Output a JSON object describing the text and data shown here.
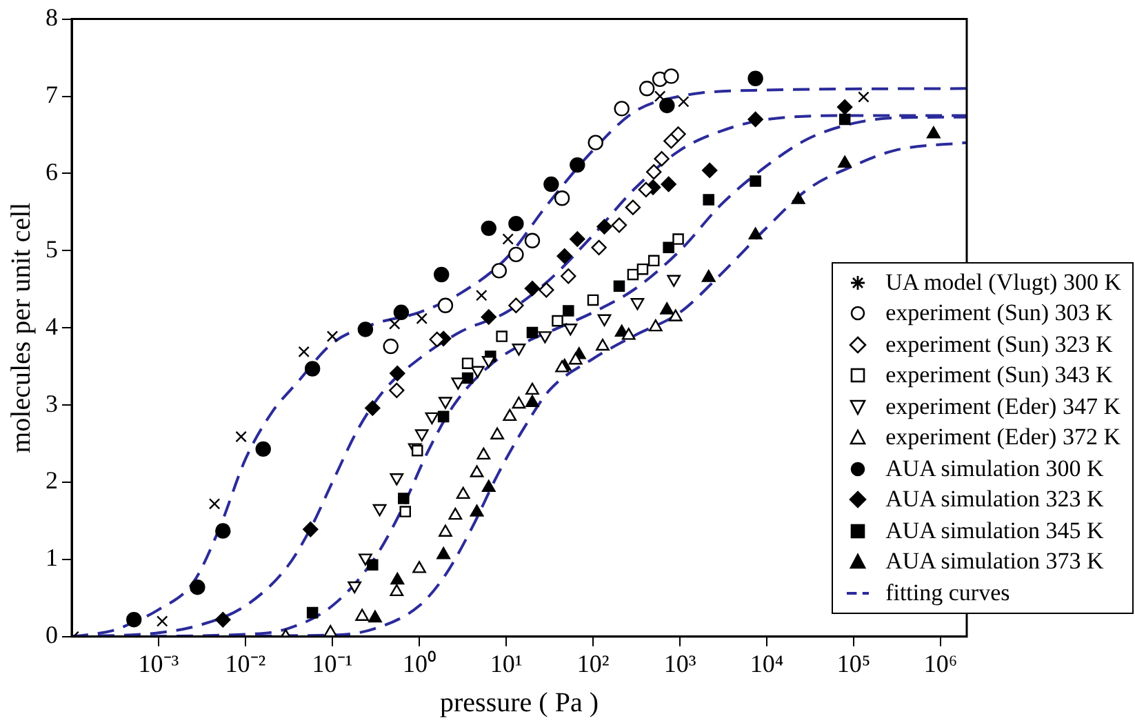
{
  "chart_data": {
    "type": "scatter",
    "xlabel": "pressure ( Pa )",
    "ylabel": "molecules per unit cell",
    "log": "x",
    "grid": false,
    "legend": "bottom right",
    "xlim": [
      0.0001,
      2000000
    ],
    "ylim": [
      0,
      8
    ],
    "xticks": [
      {
        "value": 0.001,
        "label": "10⁻³"
      },
      {
        "value": 0.01,
        "label": "10⁻²"
      },
      {
        "value": 0.1,
        "label": "10⁻¹"
      },
      {
        "value": 1,
        "label": "10⁰"
      },
      {
        "value": 10,
        "label": "10¹"
      },
      {
        "value": 100,
        "label": "10²"
      },
      {
        "value": 1000,
        "label": "10³"
      },
      {
        "value": 10000,
        "label": "10⁴"
      },
      {
        "value": 100000,
        "label": "10⁵"
      },
      {
        "value": 1000000,
        "label": "10⁶"
      }
    ],
    "yticks": [
      0,
      1,
      2,
      3,
      4,
      5,
      6,
      7,
      8
    ],
    "series": [
      {
        "name": "UA model (Vlugt) 300 K",
        "type": "scatter",
        "marker": "cross",
        "color": "#000000",
        "x": [
          0.000105,
          0.0011,
          0.0044,
          0.0089,
          0.047,
          0.1,
          0.52,
          1.07,
          5.2,
          10.5,
          590,
          1100,
          130000
        ],
        "values": [
          0,
          0.2,
          1.72,
          2.59,
          3.69,
          3.89,
          4.05,
          4.12,
          4.42,
          5.15,
          7.0,
          6.93,
          6.99
        ]
      },
      {
        "name": "experiment (Sun) 303 K",
        "type": "scatter",
        "marker": "circle",
        "color": "#ffffff",
        "x": [
          0.47,
          2.0,
          8.3,
          13,
          20,
          44,
          107,
          214,
          417,
          589,
          794
        ],
        "values": [
          3.76,
          4.29,
          4.74,
          4.95,
          5.13,
          5.68,
          6.4,
          6.84,
          7.1,
          7.22,
          7.26
        ]
      },
      {
        "name": "experiment (Sun) 323 K",
        "type": "scatter",
        "marker": "diamond",
        "color": "#ffffff",
        "x": [
          0.55,
          1.6,
          13,
          29,
          52,
          117,
          200,
          288,
          407,
          501,
          617,
          794,
          955
        ],
        "values": [
          3.19,
          3.85,
          4.29,
          4.49,
          4.67,
          5.04,
          5.33,
          5.56,
          5.79,
          6.02,
          6.19,
          6.42,
          6.51
        ]
      },
      {
        "name": "experiment (Sun) 343 K",
        "type": "scatter",
        "marker": "square",
        "color": "#ffffff",
        "x": [
          0.69,
          0.95,
          3.6,
          8.9,
          39,
          100,
          288,
          372,
          501,
          955
        ],
        "values": [
          1.62,
          2.41,
          3.54,
          3.89,
          4.09,
          4.36,
          4.69,
          4.76,
          4.87,
          5.15
        ]
      },
      {
        "name": "experiment (Eder) 347 K",
        "type": "scatter",
        "marker": "triangle-down",
        "color": "#ffffff",
        "x": [
          0.18,
          0.24,
          0.35,
          0.55,
          0.89,
          1.07,
          1.4,
          2.0,
          2.8,
          4.7,
          6.3,
          14,
          28,
          55,
          135,
          324,
          851
        ],
        "values": [
          0.66,
          1.02,
          1.66,
          2.06,
          2.45,
          2.63,
          2.85,
          3.05,
          3.3,
          3.45,
          3.58,
          3.74,
          3.9,
          4.0,
          4.12,
          4.33,
          4.63
        ]
      },
      {
        "name": "experiment (Eder) 372 K",
        "type": "scatter",
        "marker": "triangle",
        "color": "#ffffff",
        "x": [
          0.029,
          0.095,
          0.22,
          0.55,
          1.0,
          2.0,
          2.6,
          3.2,
          4.6,
          5.5,
          7.9,
          11,
          14,
          20,
          44,
          63,
          129,
          257,
          525,
          891
        ],
        "values": [
          0,
          0.05,
          0.26,
          0.58,
          0.88,
          1.35,
          1.57,
          1.84,
          2.12,
          2.35,
          2.61,
          2.85,
          3.01,
          3.19,
          3.48,
          3.58,
          3.76,
          3.9,
          4.01,
          4.14
        ]
      },
      {
        "name": "AUA simulation 300 K",
        "type": "scatter",
        "marker": "circle",
        "color": "#000000",
        "x": [
          0.00052,
          0.0028,
          0.0055,
          0.016,
          0.059,
          0.24,
          0.62,
          1.8,
          6.3,
          13,
          33,
          66,
          710,
          7400
        ],
        "values": [
          0.22,
          0.64,
          1.37,
          2.43,
          3.47,
          3.98,
          4.2,
          4.69,
          5.29,
          5.35,
          5.86,
          6.11,
          6.88,
          7.23
        ]
      },
      {
        "name": "AUA simulation 323 K",
        "type": "scatter",
        "marker": "diamond",
        "color": "#000000",
        "x": [
          0.0055,
          0.056,
          0.29,
          0.56,
          1.9,
          6.3,
          20,
          47,
          66,
          135,
          490,
          741,
          2200,
          7400,
          79000
        ],
        "values": [
          0.22,
          1.39,
          2.96,
          3.41,
          3.86,
          4.14,
          4.51,
          4.93,
          5.15,
          5.31,
          5.82,
          5.86,
          6.04,
          6.7,
          6.86
        ]
      },
      {
        "name": "AUA simulation 345 K",
        "type": "scatter",
        "marker": "square",
        "color": "#000000",
        "x": [
          0.059,
          0.29,
          0.66,
          1.9,
          3.6,
          6.6,
          20,
          52,
          200,
          741,
          2140,
          7400,
          79000
        ],
        "values": [
          0.31,
          0.93,
          1.79,
          2.85,
          3.35,
          3.63,
          3.94,
          4.22,
          4.54,
          5.04,
          5.66,
          5.9,
          6.7
        ]
      },
      {
        "name": "AUA simulation 373 K",
        "type": "scatter",
        "marker": "triangle",
        "color": "#000000",
        "x": [
          0.31,
          0.56,
          1.9,
          4.6,
          6.3,
          20,
          47,
          69,
          214,
          708,
          2140,
          7400,
          23000,
          79000,
          830000
        ],
        "values": [
          0.24,
          0.73,
          1.06,
          1.61,
          1.93,
          3.03,
          3.5,
          3.65,
          3.94,
          4.23,
          4.65,
          5.2,
          5.66,
          6.13,
          6.51
        ]
      },
      {
        "name": "fitting curves",
        "type": "line",
        "line_style": "dashed",
        "marker": "none",
        "color": "#2b2b9b",
        "x": [
          0.0001,
          0.0003,
          0.0005,
          0.001,
          0.0025,
          0.005,
          0.01,
          0.02,
          0.04,
          0.1,
          0.3,
          1,
          3,
          10,
          30,
          100,
          300,
          1000,
          10000,
          2000000
        ],
        "values": [
          0,
          0.08,
          0.18,
          0.35,
          0.7,
          1.4,
          2.3,
          2.9,
          3.3,
          3.8,
          4.05,
          4.2,
          4.45,
          4.9,
          5.6,
          6.3,
          6.8,
          7.0,
          7.08,
          7.1
        ]
      },
      {
        "type": "line",
        "line_style": "dashed",
        "marker": "none",
        "color": "#2b2b9b",
        "x": [
          0.0001,
          0.001,
          0.003,
          0.01,
          0.03,
          0.056,
          0.1,
          0.2,
          0.4,
          1,
          3,
          10,
          30,
          100,
          300,
          1000,
          3000,
          10000,
          100000,
          2000000
        ],
        "values": [
          0,
          0.05,
          0.15,
          0.4,
          0.9,
          1.4,
          2.0,
          2.7,
          3.2,
          3.6,
          3.95,
          4.2,
          4.6,
          5.2,
          5.8,
          6.3,
          6.55,
          6.7,
          6.75,
          6.75
        ]
      },
      {
        "type": "line",
        "line_style": "dashed",
        "marker": "none",
        "color": "#2b2b9b",
        "x": [
          0.0002,
          0.01,
          0.03,
          0.1,
          0.3,
          0.6,
          1.26,
          2.5,
          6.3,
          16,
          40,
          100,
          300,
          1000,
          3000,
          10000,
          30000,
          100000,
          300000,
          2000000
        ],
        "values": [
          0,
          0.03,
          0.1,
          0.4,
          1.0,
          1.6,
          2.4,
          3.0,
          3.5,
          3.8,
          4.0,
          4.2,
          4.5,
          5.0,
          5.6,
          6.1,
          6.45,
          6.65,
          6.72,
          6.73
        ]
      },
      {
        "type": "line",
        "line_style": "dashed",
        "marker": "none",
        "color": "#2b2b9b",
        "x": [
          0.0001,
          0.1,
          0.3,
          1,
          2,
          4,
          8,
          16,
          32,
          100,
          300,
          1000,
          3000,
          10000,
          30000,
          100000,
          300000,
          2000000
        ],
        "values": [
          0,
          0.02,
          0.1,
          0.4,
          0.8,
          1.4,
          2.1,
          2.7,
          3.2,
          3.6,
          3.9,
          4.2,
          4.7,
          5.3,
          5.8,
          6.1,
          6.3,
          6.4
        ]
      }
    ]
  }
}
